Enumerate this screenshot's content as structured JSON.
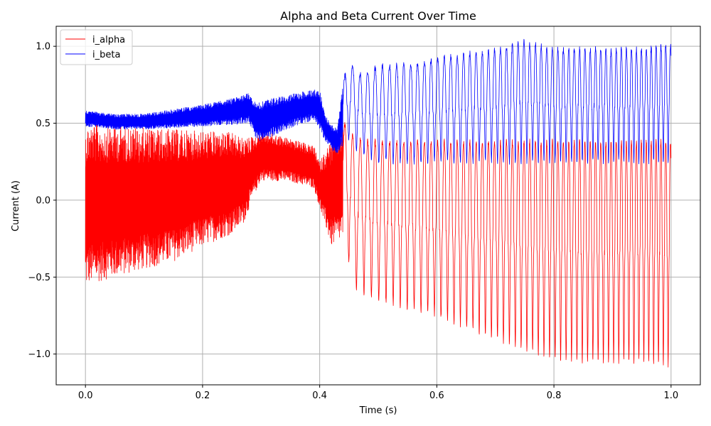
{
  "chart_data": {
    "type": "line",
    "title": "Alpha and Beta Current Over Time",
    "xlabel": "Time (s)",
    "ylabel": "Current (A)",
    "xlim": [
      -0.05,
      1.05
    ],
    "ylim": [
      -1.2,
      1.13
    ],
    "xticks": [
      0.0,
      0.2,
      0.4,
      0.6,
      0.8,
      1.0
    ],
    "xtick_labels": [
      "0.0",
      "0.2",
      "0.4",
      "0.6",
      "0.8",
      "1.0"
    ],
    "yticks": [
      -1.0,
      -0.5,
      0.0,
      0.5,
      1.0
    ],
    "ytick_labels": [
      "−1.0",
      "−0.5",
      "0.0",
      "0.5",
      "1.0"
    ],
    "grid": true,
    "legend_position": "upper-left",
    "series": [
      {
        "name": "i_alpha",
        "color": "#ff0000",
        "envelope": {
          "x": [
            0.0,
            0.005,
            0.05,
            0.1,
            0.15,
            0.2,
            0.25,
            0.27,
            0.29,
            0.3,
            0.35,
            0.39,
            0.4,
            0.42,
            0.44,
            0.45,
            0.46,
            0.5,
            0.55,
            0.6,
            0.65,
            0.7,
            0.75,
            0.8,
            0.85,
            0.9,
            0.95,
            1.0
          ],
          "upper": [
            0.47,
            0.5,
            0.49,
            0.47,
            0.46,
            0.45,
            0.44,
            0.4,
            0.42,
            0.45,
            0.4,
            0.35,
            0.25,
            0.4,
            0.5,
            0.47,
            0.4,
            0.38,
            0.38,
            0.38,
            0.38,
            0.38,
            0.38,
            0.38,
            0.38,
            0.38,
            0.38,
            0.38
          ],
          "lower": [
            -0.57,
            -0.55,
            -0.5,
            -0.45,
            -0.4,
            -0.3,
            -0.22,
            -0.15,
            0.05,
            0.13,
            0.12,
            0.08,
            -0.05,
            -0.3,
            -0.25,
            -0.4,
            -0.57,
            -0.65,
            -0.7,
            -0.75,
            -0.82,
            -0.9,
            -0.97,
            -1.03,
            -1.05,
            -1.05,
            -1.05,
            -1.07
          ]
        }
      },
      {
        "name": "i_beta",
        "color": "#0000ff",
        "envelope": {
          "x": [
            0.0,
            0.05,
            0.1,
            0.15,
            0.2,
            0.25,
            0.28,
            0.29,
            0.3,
            0.35,
            0.39,
            0.4,
            0.41,
            0.42,
            0.43,
            0.44,
            0.45,
            0.47,
            0.5,
            0.55,
            0.6,
            0.65,
            0.7,
            0.75,
            0.8,
            0.85,
            0.9,
            0.95,
            1.0
          ],
          "upper": [
            0.58,
            0.56,
            0.56,
            0.59,
            0.62,
            0.66,
            0.7,
            0.64,
            0.65,
            0.69,
            0.72,
            0.72,
            0.55,
            0.49,
            0.46,
            0.78,
            0.89,
            0.82,
            0.87,
            0.88,
            0.92,
            0.95,
            0.97,
            1.03,
            0.98,
            0.98,
            0.98,
            0.98,
            1.01
          ],
          "lower": [
            0.48,
            0.46,
            0.46,
            0.47,
            0.48,
            0.49,
            0.5,
            0.4,
            0.38,
            0.47,
            0.52,
            0.45,
            0.38,
            0.33,
            0.3,
            0.35,
            0.4,
            0.3,
            0.25,
            0.25,
            0.25,
            0.25,
            0.25,
            0.25,
            0.25,
            0.25,
            0.25,
            0.25,
            0.25
          ]
        }
      }
    ]
  }
}
